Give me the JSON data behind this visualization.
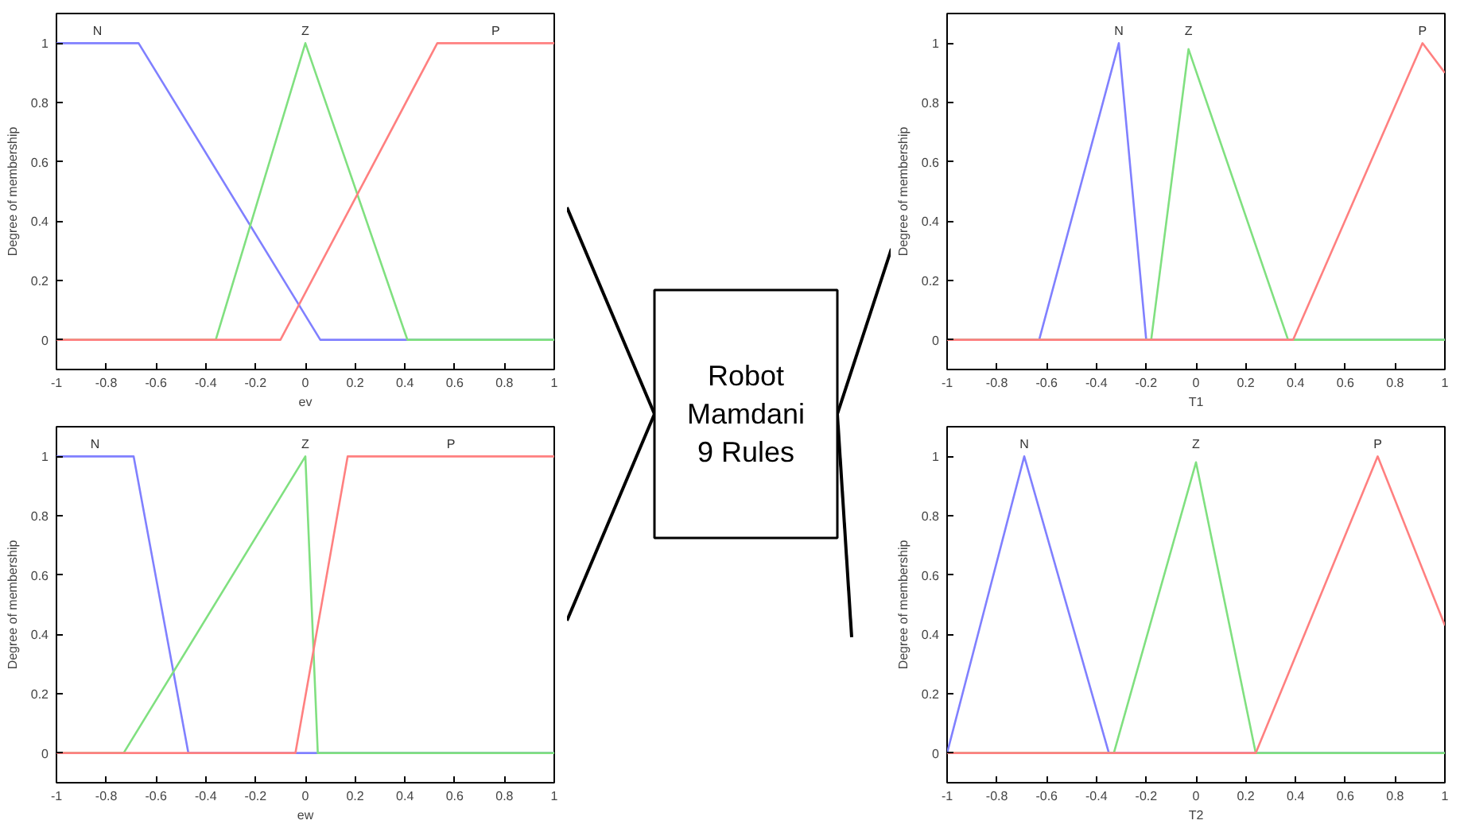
{
  "chart_data": [
    {
      "type": "line",
      "xlabel": "ev",
      "ylabel": "Degree of membership",
      "xlim": [
        -1,
        1
      ],
      "ylim": [
        -0.1,
        1.1
      ],
      "xticks": [
        -1,
        -0.8,
        -0.6,
        -0.4,
        -0.2,
        0,
        0.2,
        0.4,
        0.6,
        0.8,
        1
      ],
      "yticks": [
        0,
        0.2,
        0.4,
        0.6,
        0.8,
        1
      ],
      "grid": false,
      "legend": false,
      "series": [
        {
          "name": "N",
          "color": "#8080ff",
          "x": [
            -1,
            -0.67,
            0.06,
            1
          ],
          "values": [
            1,
            1,
            0,
            0
          ]
        },
        {
          "name": "Z",
          "color": "#80e080",
          "x": [
            -1,
            -0.36,
            0,
            0.41,
            1
          ],
          "values": [
            0,
            0,
            1,
            0,
            0
          ]
        },
        {
          "name": "P",
          "color": "#ff8080",
          "x": [
            -1,
            -0.1,
            0.53,
            1
          ],
          "values": [
            0,
            0,
            1,
            1
          ]
        }
      ]
    },
    {
      "type": "other",
      "annotations": [
        "Robot",
        "Mamdani",
        "9 Rules"
      ]
    },
    {
      "type": "line",
      "xlabel": "T1",
      "ylabel": "Degree of membership",
      "xlim": [
        -1,
        1
      ],
      "ylim": [
        -0.1,
        1.1
      ],
      "xticks": [
        -1,
        -0.8,
        -0.6,
        -0.4,
        -0.2,
        0,
        0.2,
        0.4,
        0.6,
        0.8,
        1
      ],
      "yticks": [
        0,
        0.2,
        0.4,
        0.6,
        0.8,
        1
      ],
      "grid": false,
      "legend": false,
      "series": [
        {
          "name": "N",
          "color": "#8080ff",
          "x": [
            -1,
            -0.63,
            -0.31,
            -0.2,
            1
          ],
          "values": [
            0,
            0,
            1,
            0,
            0
          ]
        },
        {
          "name": "Z",
          "color": "#80e080",
          "x": [
            -1,
            -0.18,
            -0.03,
            0.37,
            1
          ],
          "values": [
            0,
            0,
            0.98,
            0,
            0
          ]
        },
        {
          "name": "P",
          "color": "#ff8080",
          "x": [
            -1,
            0.39,
            0.91,
            1
          ],
          "values": [
            0,
            0,
            1,
            0.9
          ]
        }
      ]
    },
    {
      "type": "line",
      "xlabel": "ew",
      "ylabel": "Degree of membership",
      "xlim": [
        -1,
        1
      ],
      "ylim": [
        -0.1,
        1.1
      ],
      "xticks": [
        -1,
        -0.8,
        -0.6,
        -0.4,
        -0.2,
        0,
        0.2,
        0.4,
        0.6,
        0.8,
        1
      ],
      "yticks": [
        0,
        0.2,
        0.4,
        0.6,
        0.8,
        1
      ],
      "grid": false,
      "legend": false,
      "series": [
        {
          "name": "N",
          "color": "#8080ff",
          "x": [
            -1,
            -0.69,
            -0.47,
            1
          ],
          "values": [
            1,
            1,
            0,
            0
          ]
        },
        {
          "name": "Z",
          "color": "#80e080",
          "x": [
            -1,
            -0.73,
            0,
            0.05,
            1
          ],
          "values": [
            0,
            0,
            1,
            0,
            0
          ]
        },
        {
          "name": "P",
          "color": "#ff8080",
          "x": [
            -1,
            -0.04,
            0.17,
            1
          ],
          "values": [
            0,
            0,
            1,
            1
          ]
        }
      ]
    },
    {
      "type": "line",
      "xlabel": "T2",
      "ylabel": "Degree of membership",
      "xlim": [
        -1,
        1
      ],
      "ylim": [
        -0.1,
        1.1
      ],
      "xticks": [
        -1,
        -0.8,
        -0.6,
        -0.4,
        -0.2,
        0,
        0.2,
        0.4,
        0.6,
        0.8,
        1
      ],
      "yticks": [
        0,
        0.2,
        0.4,
        0.6,
        0.8,
        1
      ],
      "grid": false,
      "legend": false,
      "series": [
        {
          "name": "N",
          "color": "#8080ff",
          "x": [
            -1,
            -0.69,
            -0.35,
            1
          ],
          "values": [
            0,
            1,
            0,
            0
          ]
        },
        {
          "name": "Z",
          "color": "#80e080",
          "x": [
            -1,
            -0.33,
            0,
            0.24,
            1
          ],
          "values": [
            0,
            0,
            0.98,
            0,
            0
          ]
        },
        {
          "name": "P",
          "color": "#ff8080",
          "x": [
            -1,
            0.24,
            0.73,
            1
          ],
          "values": [
            0,
            0,
            1,
            0.43
          ]
        }
      ]
    }
  ]
}
